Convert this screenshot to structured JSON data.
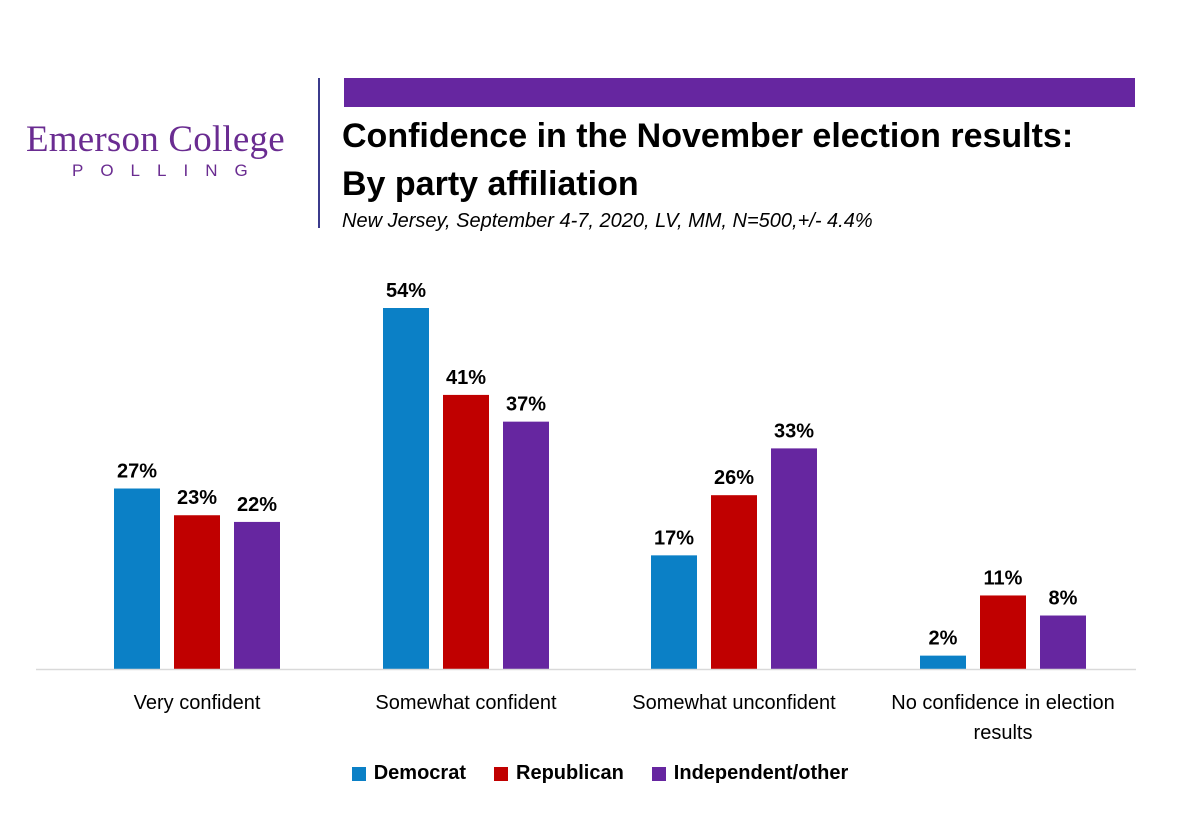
{
  "logo": {
    "name": "Emerson College",
    "sub": "POLLING"
  },
  "header": {
    "title_line1": "Confidence in the November election results:",
    "title_line2": "By party affiliation",
    "subtitle": "New Jersey, September 4-7, 2020, LV, MM,  N=500,+/-  4.4%"
  },
  "colors": {
    "accent": "#6626a0",
    "democrat": "#0b80c6",
    "republican": "#c00000",
    "independent": "#6626a0"
  },
  "chart_data": {
    "type": "bar",
    "categories": [
      "Very confident",
      "Somewhat confident",
      "Somewhat unconfident",
      "No confidence in election results"
    ],
    "category_lines": [
      [
        "Very confident"
      ],
      [
        "Somewhat confident"
      ],
      [
        "Somewhat unconfident"
      ],
      [
        "No confidence in election",
        "results"
      ]
    ],
    "series": [
      {
        "name": "Democrat",
        "values": [
          27,
          54,
          17,
          2
        ],
        "labels": [
          "27%",
          "54%",
          "17%",
          "2%"
        ],
        "color": "#0b80c6"
      },
      {
        "name": "Republican",
        "values": [
          23,
          41,
          26,
          11
        ],
        "labels": [
          "23%",
          "41%",
          "26%",
          "11%"
        ],
        "color": "#c00000"
      },
      {
        "name": "Independent/other",
        "values": [
          22,
          37,
          33,
          8
        ],
        "labels": [
          "22%",
          "37%",
          "33%",
          "8%"
        ],
        "color": "#6626a0"
      }
    ],
    "ylim": [
      0,
      54
    ],
    "legend_position": "bottom",
    "grid": false
  }
}
